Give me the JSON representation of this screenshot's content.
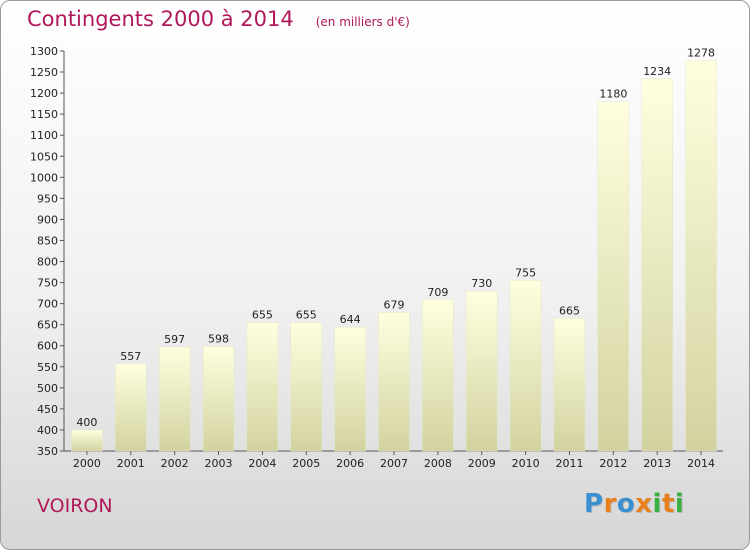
{
  "header": {
    "title": "Contingents 2000 à 2014",
    "subtitle": "(en milliers d'€)"
  },
  "footer": {
    "city": "VOIRON",
    "brand": "Proxiti"
  },
  "colors": {
    "title": "#b0185a",
    "bar_top": "#ffffe0",
    "bar_bottom": "#d2d2a0",
    "brand_letters": [
      "#3a8fd0",
      "#e8801c",
      "#3a8fd0",
      "#e8801c",
      "#3ab040",
      "#e8801c",
      "#3ab040"
    ]
  },
  "chart_data": {
    "type": "bar",
    "title": "Contingents 2000 à 2014",
    "subtitle": "(en milliers d'€)",
    "xlabel": "",
    "ylabel": "",
    "categories": [
      "2000",
      "2001",
      "2002",
      "2003",
      "2004",
      "2005",
      "2006",
      "2007",
      "2008",
      "2009",
      "2010",
      "2011",
      "2012",
      "2013",
      "2014"
    ],
    "values": [
      400,
      557,
      597,
      598,
      655,
      655,
      644,
      679,
      709,
      730,
      755,
      665,
      1180,
      1234,
      1278
    ],
    "ylim": [
      350,
      1300
    ],
    "yticks": [
      350,
      400,
      450,
      500,
      550,
      600,
      650,
      700,
      750,
      800,
      850,
      900,
      950,
      1000,
      1050,
      1100,
      1150,
      1200,
      1250,
      1300
    ],
    "grid": false,
    "legend": "none"
  }
}
